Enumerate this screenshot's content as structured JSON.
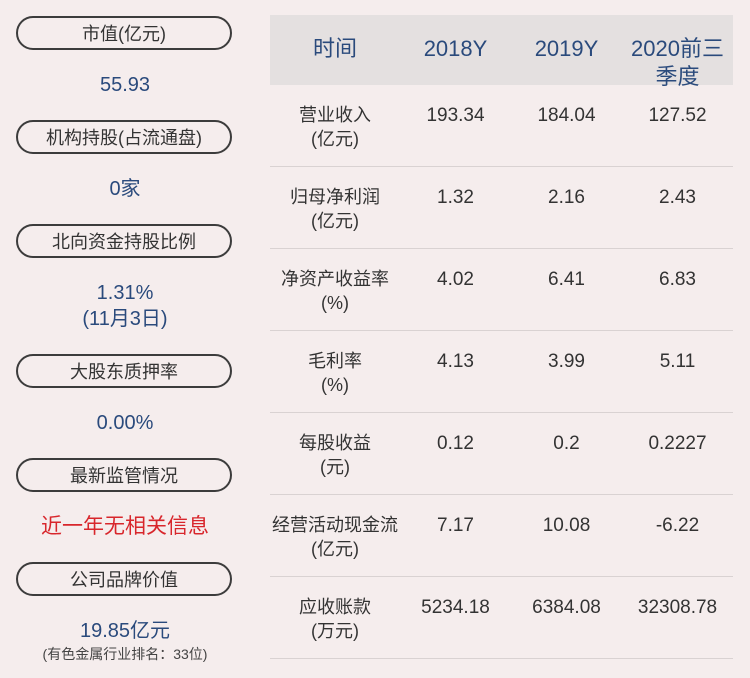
{
  "left": [
    {
      "label": "市值(亿元)",
      "value": "55.93"
    },
    {
      "label": "机构持股(占流通盘)",
      "value": "0家"
    },
    {
      "label": "北向资金持股比例",
      "value": "1.31%",
      "value2": "(11月3日)"
    },
    {
      "label": "大股东质押率",
      "value": "0.00%"
    },
    {
      "label": "最新监管情况",
      "value": "近一年无相关信息"
    },
    {
      "label": "公司品牌价值",
      "value": "19.85亿元",
      "note": "(有色金属行业排名：33位)"
    }
  ],
  "table": {
    "headers": [
      "时间",
      "2018Y",
      "2019Y",
      "2020前三季度"
    ],
    "rows": [
      {
        "name": "营业收入",
        "unit": "(亿元)",
        "v": [
          "193.34",
          "184.04",
          "127.52"
        ]
      },
      {
        "name": "归母净利润",
        "unit": "(亿元)",
        "v": [
          "1.32",
          "2.16",
          "2.43"
        ]
      },
      {
        "name": "净资产收益率",
        "unit": "(%)",
        "v": [
          "4.02",
          "6.41",
          "6.83"
        ]
      },
      {
        "name": "毛利率",
        "unit": "(%)",
        "v": [
          "4.13",
          "3.99",
          "5.11"
        ]
      },
      {
        "name": "每股收益",
        "unit": "(元)",
        "v": [
          "0.12",
          "0.2",
          "0.2227"
        ]
      },
      {
        "name": "经营活动现金流",
        "unit": "(亿元)",
        "v": [
          "7.17",
          "10.08",
          "-6.22"
        ]
      },
      {
        "name": "应收账款",
        "unit": "(万元)",
        "v": [
          "5234.18",
          "6384.08",
          "32308.78"
        ]
      }
    ]
  }
}
